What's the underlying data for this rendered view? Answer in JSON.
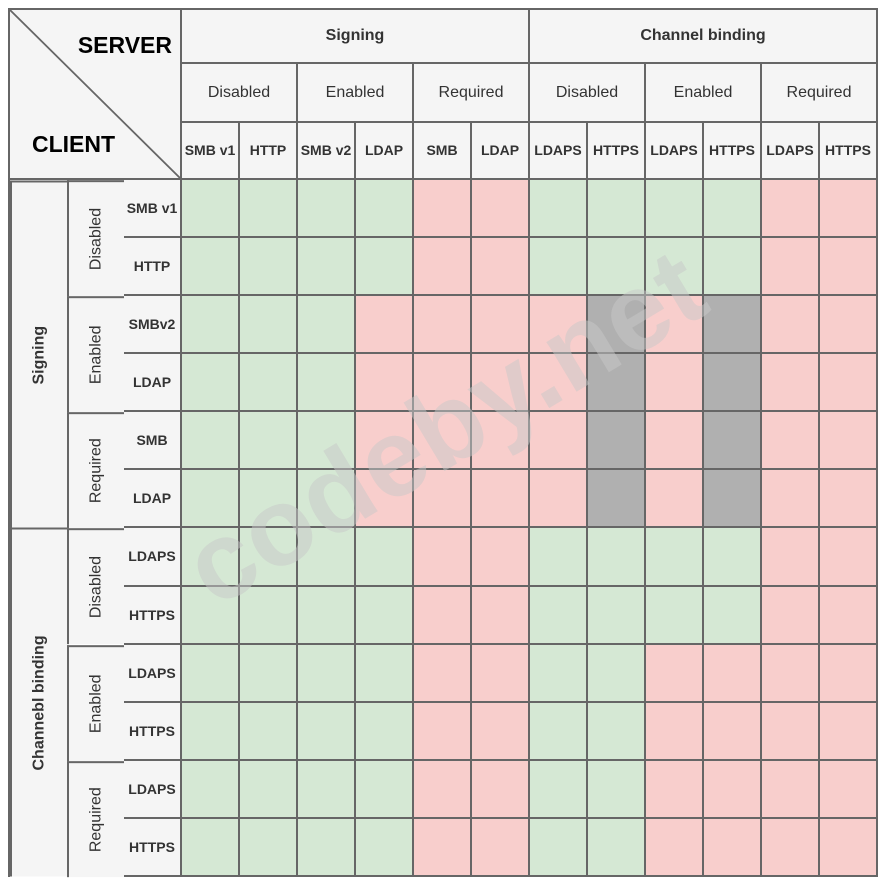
{
  "corner": {
    "server": "SERVER",
    "client": "CLIENT"
  },
  "watermark": {
    "text": "codeby.net"
  },
  "colors": {
    "green": "#d5e8d4",
    "red": "#f8cecc",
    "gray": "#b0b0b0",
    "header_bg": "#f5f5f5",
    "border": "#666666",
    "header_text": "#333333"
  },
  "col_header": {
    "groups": [
      {
        "label": "Signing",
        "modes": [
          {
            "label": "Disabled",
            "protocols": [
              "SMB v1",
              "HTTP"
            ]
          },
          {
            "label": "Enabled",
            "protocols": [
              "SMB v2",
              "LDAP"
            ]
          },
          {
            "label": "Required",
            "protocols": [
              "SMB",
              "LDAP"
            ]
          }
        ]
      },
      {
        "label": "Channel binding",
        "modes": [
          {
            "label": "Disabled",
            "protocols": [
              "LDAPS",
              "HTTPS"
            ]
          },
          {
            "label": "Enabled",
            "protocols": [
              "LDAPS",
              "HTTPS"
            ]
          },
          {
            "label": "Required",
            "protocols": [
              "LDAPS",
              "HTTPS"
            ]
          }
        ]
      }
    ]
  },
  "row_header": {
    "groups": [
      {
        "label": "Signing",
        "modes": [
          {
            "label": "Disabled",
            "protocols": [
              "SMB v1",
              "HTTP"
            ]
          },
          {
            "label": "Enabled",
            "protocols": [
              "SMBv2",
              "LDAP"
            ]
          },
          {
            "label": "Required",
            "protocols": [
              "SMB",
              "LDAP"
            ]
          }
        ]
      },
      {
        "label": "Channebl binding",
        "modes": [
          {
            "label": "Disabled",
            "protocols": [
              "LDAPS",
              "HTTPS"
            ]
          },
          {
            "label": "Enabled",
            "protocols": [
              "LDAPS",
              "HTTPS"
            ]
          },
          {
            "label": "Required",
            "protocols": [
              "LDAPS",
              "HTTPS"
            ]
          }
        ]
      }
    ]
  },
  "matrix": [
    [
      "green",
      "green",
      "green",
      "green",
      "red",
      "red",
      "green",
      "green",
      "green",
      "green",
      "red",
      "red"
    ],
    [
      "green",
      "green",
      "green",
      "green",
      "red",
      "red",
      "green",
      "green",
      "green",
      "green",
      "red",
      "red"
    ],
    [
      "green",
      "green",
      "green",
      "red",
      "red",
      "red",
      "red",
      "gray",
      "red",
      "gray",
      "red",
      "red"
    ],
    [
      "green",
      "green",
      "green",
      "red",
      "red",
      "red",
      "red",
      "gray",
      "red",
      "gray",
      "red",
      "red"
    ],
    [
      "green",
      "green",
      "green",
      "red",
      "red",
      "red",
      "red",
      "gray",
      "red",
      "gray",
      "red",
      "red"
    ],
    [
      "green",
      "green",
      "green",
      "red",
      "red",
      "red",
      "red",
      "gray",
      "red",
      "gray",
      "red",
      "red"
    ],
    [
      "green",
      "green",
      "green",
      "green",
      "red",
      "red",
      "green",
      "green",
      "green",
      "green",
      "red",
      "red"
    ],
    [
      "green",
      "green",
      "green",
      "green",
      "red",
      "red",
      "green",
      "green",
      "green",
      "green",
      "red",
      "red"
    ],
    [
      "green",
      "green",
      "green",
      "green",
      "red",
      "red",
      "green",
      "green",
      "red",
      "red",
      "red",
      "red"
    ],
    [
      "green",
      "green",
      "green",
      "green",
      "red",
      "red",
      "green",
      "green",
      "red",
      "red",
      "red",
      "red"
    ],
    [
      "green",
      "green",
      "green",
      "green",
      "red",
      "red",
      "green",
      "green",
      "red",
      "red",
      "red",
      "red"
    ],
    [
      "green",
      "green",
      "green",
      "green",
      "red",
      "red",
      "green",
      "green",
      "red",
      "red",
      "red",
      "red"
    ]
  ]
}
